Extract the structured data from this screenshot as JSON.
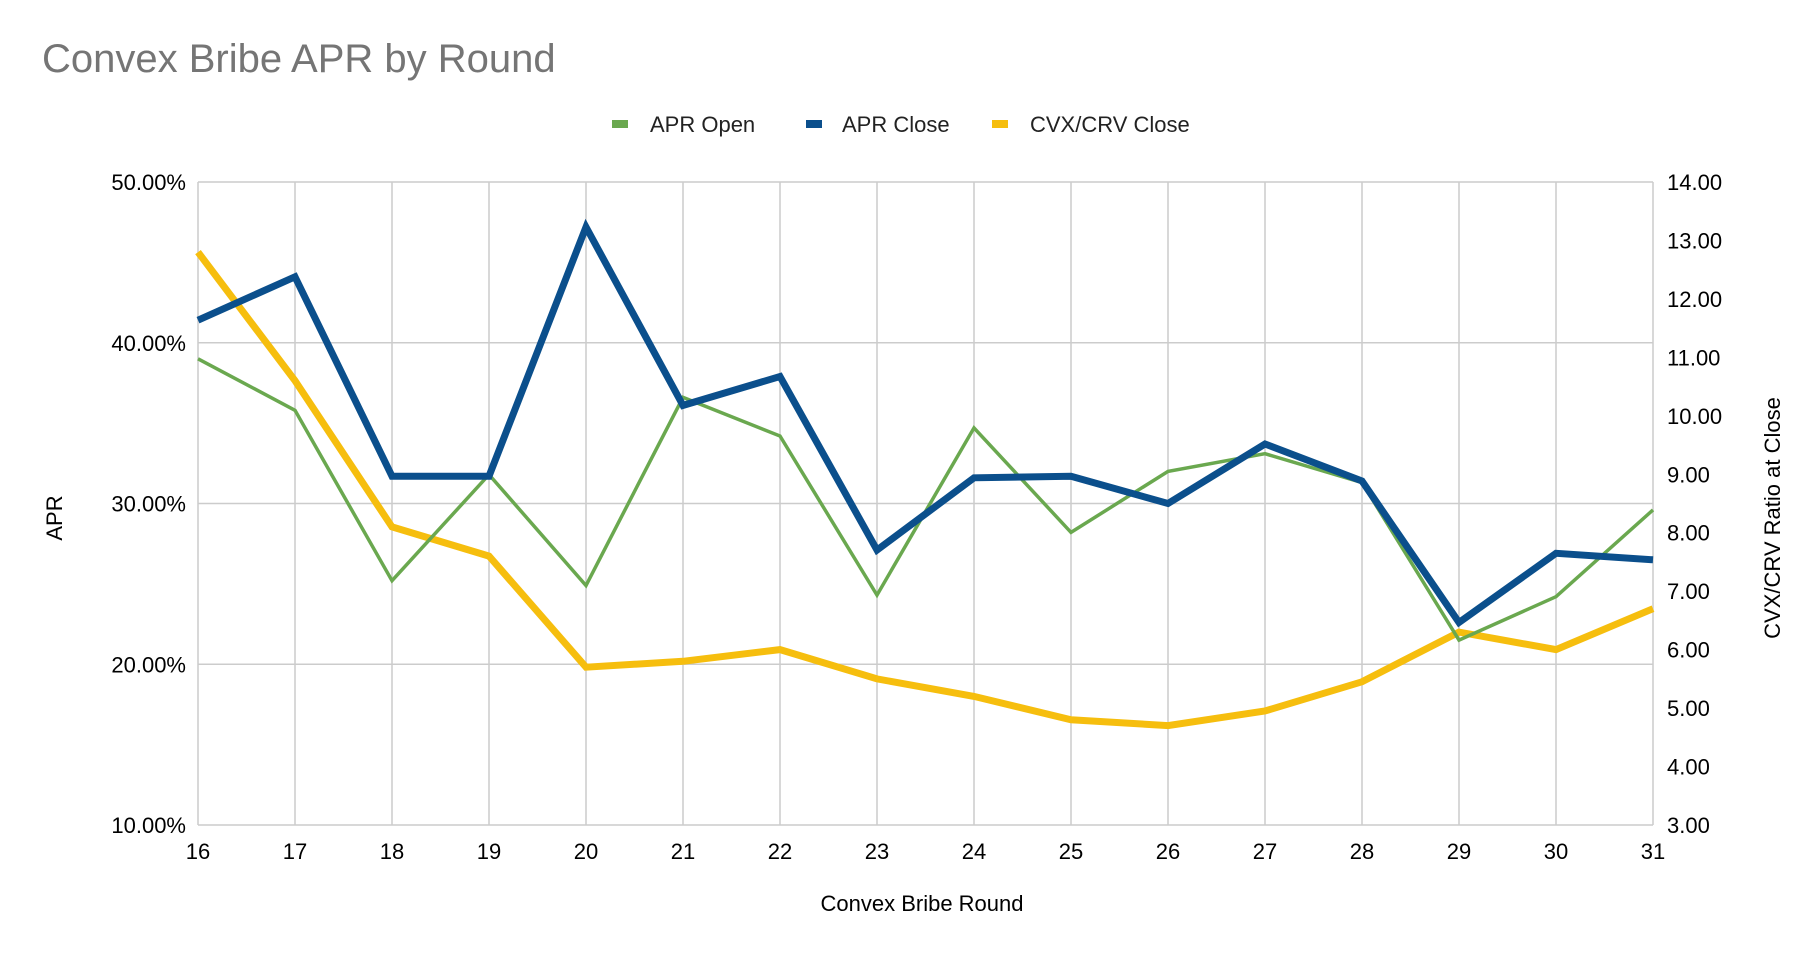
{
  "chart_data": {
    "type": "line",
    "title": "Convex Bribe APR by Round",
    "xlabel": "Convex Bribe Round",
    "ylabel": "APR",
    "ylabel_right": "CVX/CRV Ratio at Close",
    "x": [
      16,
      17,
      18,
      19,
      20,
      21,
      22,
      23,
      24,
      25,
      26,
      27,
      28,
      29,
      30,
      31
    ],
    "x_tick_labels": [
      "16",
      "17",
      "18",
      "19",
      "20",
      "21",
      "22",
      "23",
      "24",
      "25",
      "26",
      "27",
      "28",
      "29",
      "30",
      "31"
    ],
    "ylim": [
      0.1,
      0.5
    ],
    "y_tick_labels": [
      "10.00%",
      "20.00%",
      "30.00%",
      "40.00%",
      "50.00%"
    ],
    "ylim_right": [
      3.0,
      14.0
    ],
    "y_right_tick_labels": [
      "3.00",
      "4.00",
      "5.00",
      "6.00",
      "7.00",
      "8.00",
      "9.00",
      "10.00",
      "11.00",
      "12.00",
      "13.00",
      "14.00"
    ],
    "grid": true,
    "legend_position": "top",
    "series": [
      {
        "name": "APR Open",
        "axis": "left",
        "color": "#6aa84f",
        "values": [
          0.39,
          0.358,
          0.252,
          0.318,
          0.249,
          0.366,
          0.342,
          0.243,
          0.347,
          0.282,
          0.32,
          0.331,
          0.313,
          0.215,
          0.242,
          0.296
        ]
      },
      {
        "name": "APR Close",
        "axis": "left",
        "color": "#0b4f8c",
        "values": [
          0.414,
          0.441,
          0.317,
          0.317,
          0.472,
          0.361,
          0.379,
          0.271,
          0.316,
          0.317,
          0.3,
          0.337,
          0.314,
          0.226,
          0.269,
          0.265
        ]
      },
      {
        "name": "CVX/CRV Close",
        "axis": "right",
        "color": "#f6be0e",
        "values": [
          12.8,
          10.6,
          8.1,
          7.6,
          5.7,
          5.8,
          6.0,
          5.5,
          5.2,
          4.8,
          4.7,
          4.95,
          5.45,
          6.3,
          6.0,
          6.7
        ]
      }
    ]
  }
}
